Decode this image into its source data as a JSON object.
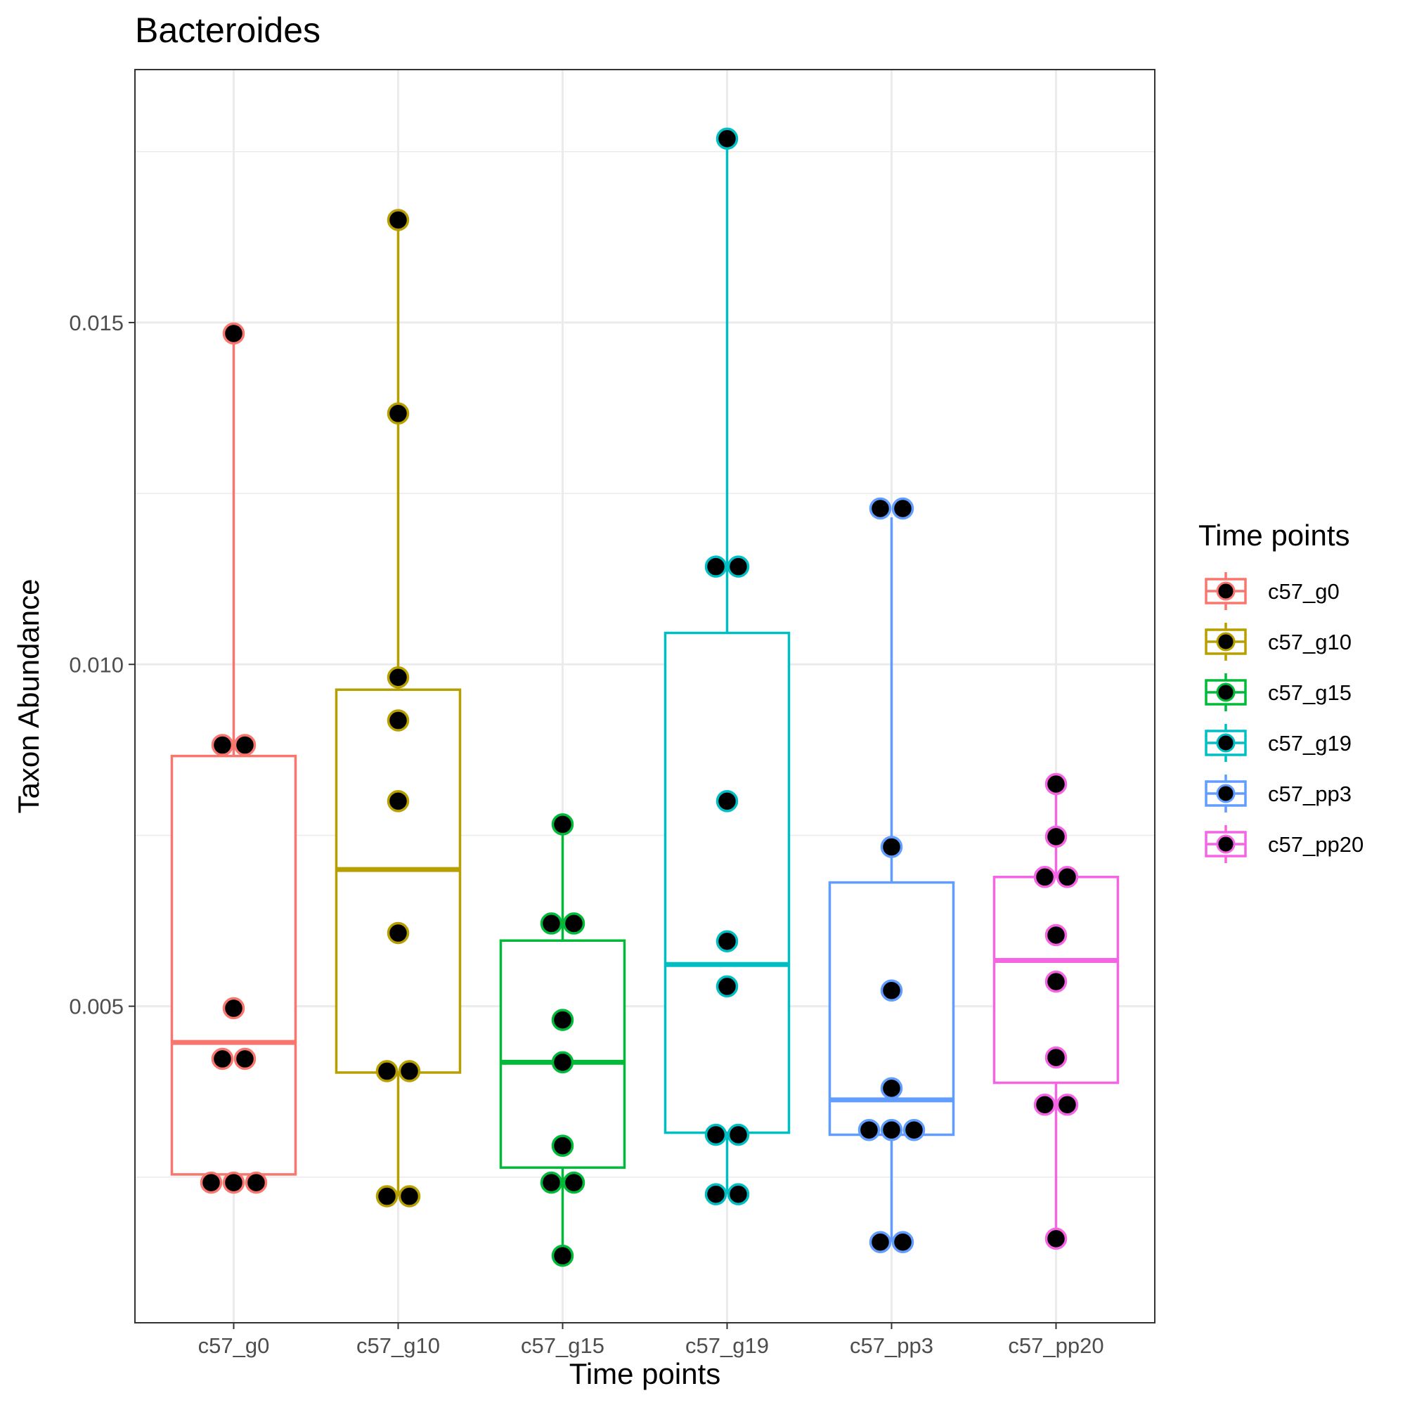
{
  "chart_data": {
    "type": "boxplot",
    "title": "Bacteroides",
    "xlabel": "Time points",
    "ylabel": "Taxon Abundance",
    "categories": [
      "c57_g0",
      "c57_g10",
      "c57_g15",
      "c57_g19",
      "c57_pp3",
      "c57_pp20"
    ],
    "y_ticks": [
      0.005,
      0.01,
      0.015
    ],
    "y_tick_labels": [
      "0.005",
      "0.010",
      "0.015"
    ],
    "ylim": [
      0.00037,
      0.0187
    ],
    "grid": true,
    "legend": {
      "title": "Time points",
      "position": "right",
      "entries": [
        "c57_g0",
        "c57_g10",
        "c57_g15",
        "c57_g19",
        "c57_pp3",
        "c57_pp20"
      ]
    },
    "colors": [
      "#F8766D",
      "#B79F00",
      "#00BA38",
      "#00BFC4",
      "#619CFF",
      "#F564E3"
    ],
    "point_fill": "#000000",
    "series": [
      {
        "name": "c57_g0",
        "box": {
          "q1": 0.00254,
          "median": 0.00447,
          "q3": 0.00866,
          "whisker_low": 0.00242,
          "whisker_high": 0.01484
        },
        "points": [
          0.01484,
          0.00882,
          0.00882,
          0.00497,
          0.00423,
          0.00423,
          0.00242,
          0.00242,
          0.00242
        ]
      },
      {
        "name": "c57_g10",
        "box": {
          "q1": 0.00403,
          "median": 0.007,
          "q3": 0.00963,
          "whisker_low": 0.00222,
          "whisker_high": 0.0165
        },
        "points": [
          0.0165,
          0.01367,
          0.00981,
          0.00918,
          0.008,
          0.00607,
          0.00405,
          0.00405,
          0.00222,
          0.00222
        ]
      },
      {
        "name": "c57_g15",
        "box": {
          "q1": 0.00264,
          "median": 0.00418,
          "q3": 0.00596,
          "whisker_low": 0.00135,
          "whisker_high": 0.00766
        },
        "points": [
          0.00766,
          0.00621,
          0.00621,
          0.0048,
          0.00418,
          0.00296,
          0.00242,
          0.00242,
          0.00135
        ]
      },
      {
        "name": "c57_g19",
        "box": {
          "q1": 0.00315,
          "median": 0.00561,
          "q3": 0.01046,
          "whisker_low": 0.00225,
          "whisker_high": 0.01769
        },
        "points": [
          0.01769,
          0.01143,
          0.01143,
          0.008,
          0.00595,
          0.00529,
          0.00312,
          0.00312,
          0.00225,
          0.00225
        ]
      },
      {
        "name": "c57_pp3",
        "box": {
          "q1": 0.00312,
          "median": 0.00363,
          "q3": 0.00681,
          "whisker_low": 0.00155,
          "whisker_high": 0.01215
        },
        "points": [
          0.01228,
          0.01228,
          0.00733,
          0.00523,
          0.0038,
          0.00319,
          0.00319,
          0.00319,
          0.00155,
          0.00155
        ]
      },
      {
        "name": "c57_pp20",
        "box": {
          "q1": 0.00388,
          "median": 0.00567,
          "q3": 0.00689,
          "whisker_low": 0.0016,
          "whisker_high": 0.00825
        },
        "points": [
          0.00825,
          0.00748,
          0.00689,
          0.00689,
          0.00604,
          0.00536,
          0.00425,
          0.00356,
          0.00356,
          0.0016
        ]
      }
    ]
  }
}
